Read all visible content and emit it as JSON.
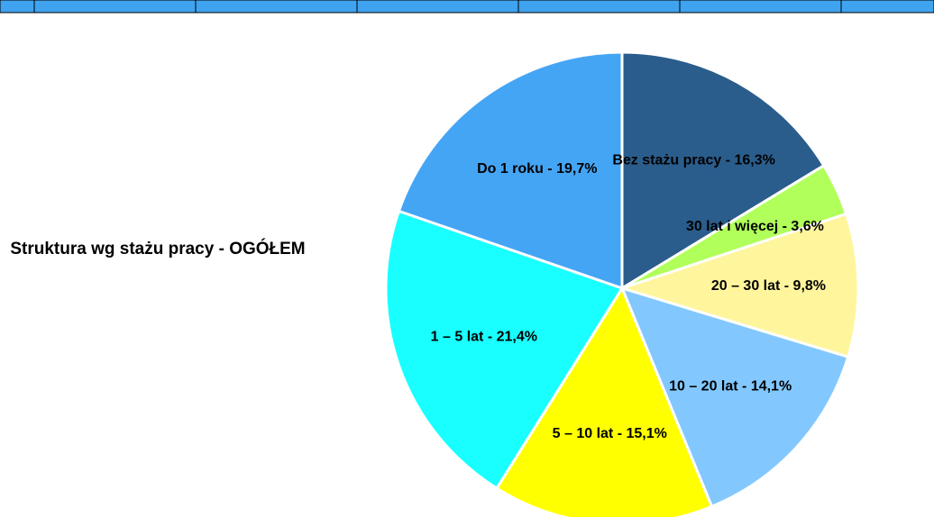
{
  "chart_data": {
    "type": "pie",
    "title": "Struktura wg stażu pracy - OGÓŁEM",
    "labels": [
      "Bez stażu pracy - 16,3%",
      "30 lat i więcej - 3,6%",
      "20 – 30 lat - 9,8%",
      "10 – 20 lat - 14,1%",
      "5 – 10 lat - 15,1%",
      "1 – 5 lat - 21,4%",
      "Do 1 roku - 19,7%"
    ],
    "values": [
      16.3,
      3.6,
      9.8,
      14.1,
      15.1,
      21.4,
      19.7
    ],
    "colors": [
      "#2a5d8c",
      "#b0ff5a",
      "#fff59d",
      "#82c8ff",
      "#ffff00",
      "#19ffff",
      "#45a5f5"
    ]
  }
}
